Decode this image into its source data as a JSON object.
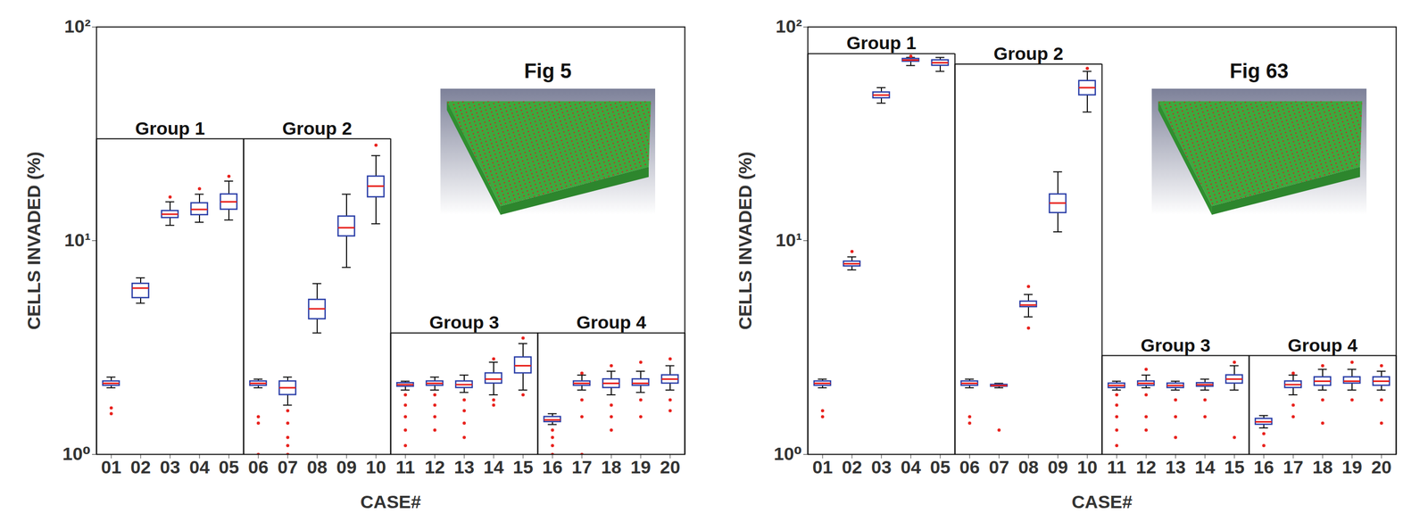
{
  "chart_data": [
    {
      "type": "box",
      "title": "Fig 5",
      "x_label": "CASE#",
      "y_label": "CELLS INVADED (%)",
      "log": "y",
      "color": "#2b3fa8",
      "categories": [
        "01",
        "02",
        "03",
        "04",
        "05",
        "06",
        "07",
        "08",
        "09",
        "10",
        "11",
        "12",
        "13",
        "14",
        "15",
        "16",
        "17",
        "18",
        "19",
        "20"
      ],
      "ylim": [
        1,
        100
      ],
      "yticks": [
        {
          "value": 1,
          "label": "10⁰"
        },
        {
          "value": 10,
          "label": "10¹"
        },
        {
          "value": 100,
          "label": "10²"
        }
      ],
      "boxes": [
        {
          "median": 2.15,
          "q1": 2.1,
          "q3": 2.2,
          "whisker_low": 2.05,
          "whisker_high": 2.3,
          "outliers": [
            1.55,
            1.65
          ]
        },
        {
          "median": 6.0,
          "q1": 5.4,
          "q3": 6.3,
          "whisker_low": 5.1,
          "whisker_high": 6.7,
          "outliers": []
        },
        {
          "median": 13.3,
          "q1": 12.8,
          "q3": 13.8,
          "whisker_low": 11.8,
          "whisker_high": 15.2,
          "outliers": [
            16.0
          ]
        },
        {
          "median": 14.0,
          "q1": 13.2,
          "q3": 15.0,
          "whisker_low": 12.2,
          "whisker_high": 16.5,
          "outliers": [
            17.5
          ]
        },
        {
          "median": 15.2,
          "q1": 14.0,
          "q3": 16.5,
          "whisker_low": 12.5,
          "whisker_high": 19.0,
          "outliers": [
            20.0
          ]
        },
        {
          "median": 2.15,
          "q1": 2.1,
          "q3": 2.2,
          "whisker_low": 2.05,
          "whisker_high": 2.25,
          "outliers": [
            1.5,
            1.4,
            1.0
          ]
        },
        {
          "median": 2.05,
          "q1": 1.9,
          "q3": 2.2,
          "whisker_low": 1.7,
          "whisker_high": 2.3,
          "outliers": [
            1.6,
            1.4,
            1.2,
            1.1,
            1.0
          ]
        },
        {
          "median": 4.8,
          "q1": 4.3,
          "q3": 5.3,
          "whisker_low": 3.7,
          "whisker_high": 6.3,
          "outliers": []
        },
        {
          "median": 11.5,
          "q1": 10.5,
          "q3": 13.0,
          "whisker_low": 7.5,
          "whisker_high": 16.5,
          "outliers": []
        },
        {
          "median": 18.0,
          "q1": 16.0,
          "q3": 20.0,
          "whisker_low": 12.0,
          "whisker_high": 25.0,
          "outliers": [
            28.0
          ]
        },
        {
          "median": 2.12,
          "q1": 2.08,
          "q3": 2.16,
          "whisker_low": 2.0,
          "whisker_high": 2.2,
          "outliers": [
            1.9,
            1.7,
            1.5,
            1.3,
            1.1
          ]
        },
        {
          "median": 2.15,
          "q1": 2.1,
          "q3": 2.2,
          "whisker_low": 2.0,
          "whisker_high": 2.3,
          "outliers": [
            1.9,
            1.7,
            1.5,
            1.3
          ]
        },
        {
          "median": 2.12,
          "q1": 2.05,
          "q3": 2.2,
          "whisker_low": 1.95,
          "whisker_high": 2.35,
          "outliers": [
            1.8,
            1.6,
            1.4,
            1.2
          ]
        },
        {
          "median": 2.25,
          "q1": 2.15,
          "q3": 2.4,
          "whisker_low": 1.9,
          "whisker_high": 2.7,
          "outliers": [
            2.8,
            1.8,
            1.7
          ]
        },
        {
          "median": 2.6,
          "q1": 2.4,
          "q3": 2.85,
          "whisker_low": 2.0,
          "whisker_high": 3.3,
          "outliers": [
            3.5,
            1.9
          ]
        },
        {
          "median": 1.45,
          "q1": 1.42,
          "q3": 1.5,
          "whisker_low": 1.38,
          "whisker_high": 1.55,
          "outliers": [
            1.3,
            1.2,
            1.1,
            1.0
          ]
        },
        {
          "median": 2.15,
          "q1": 2.1,
          "q3": 2.2,
          "whisker_low": 2.0,
          "whisker_high": 2.35,
          "outliers": [
            2.4,
            1.8,
            1.5,
            1.0
          ]
        },
        {
          "median": 2.15,
          "q1": 2.05,
          "q3": 2.25,
          "whisker_low": 1.9,
          "whisker_high": 2.45,
          "outliers": [
            2.6,
            1.7,
            1.5,
            1.3
          ]
        },
        {
          "median": 2.15,
          "q1": 2.1,
          "q3": 2.25,
          "whisker_low": 1.95,
          "whisker_high": 2.45,
          "outliers": [
            2.7,
            1.8,
            1.5
          ]
        },
        {
          "median": 2.25,
          "q1": 2.15,
          "q3": 2.35,
          "whisker_low": 2.0,
          "whisker_high": 2.6,
          "outliers": [
            2.8,
            1.8,
            1.6
          ]
        }
      ],
      "groups": [
        {
          "label": "Group 1",
          "first": "01",
          "last": "05",
          "level": 30
        },
        {
          "label": "Group 2",
          "first": "06",
          "last": "10",
          "level": 30
        },
        {
          "label": "Group 3",
          "first": "11",
          "last": "15",
          "level": 3.7
        },
        {
          "label": "Group 4",
          "first": "16",
          "last": "20",
          "level": 3.7
        }
      ]
    },
    {
      "type": "box",
      "title": "Fig 63",
      "x_label": "CASE#",
      "y_label": "CELLS INVADED (%)",
      "log": "y",
      "color": "#2b3fa8",
      "categories": [
        "01",
        "02",
        "03",
        "04",
        "05",
        "06",
        "07",
        "08",
        "09",
        "10",
        "11",
        "12",
        "13",
        "14",
        "15",
        "16",
        "17",
        "18",
        "19",
        "20"
      ],
      "ylim": [
        1,
        100
      ],
      "yticks": [
        {
          "value": 1,
          "label": "10⁰"
        },
        {
          "value": 10,
          "label": "10¹"
        },
        {
          "value": 100,
          "label": "10²"
        }
      ],
      "boxes": [
        {
          "median": 2.15,
          "q1": 2.1,
          "q3": 2.2,
          "whisker_low": 2.05,
          "whisker_high": 2.25,
          "outliers": [
            1.6,
            1.5
          ]
        },
        {
          "median": 7.8,
          "q1": 7.6,
          "q3": 8.0,
          "whisker_low": 7.3,
          "whisker_high": 8.4,
          "outliers": [
            8.9
          ]
        },
        {
          "median": 48,
          "q1": 46.5,
          "q3": 49.5,
          "whisker_low": 44,
          "whisker_high": 52,
          "outliers": []
        },
        {
          "median": 70,
          "q1": 69,
          "q3": 71,
          "whisker_low": 66,
          "whisker_high": 72,
          "outliers": [
            73
          ]
        },
        {
          "median": 68,
          "q1": 66,
          "q3": 70,
          "whisker_low": 62,
          "whisker_high": 72,
          "outliers": []
        },
        {
          "median": 2.15,
          "q1": 2.1,
          "q3": 2.2,
          "whisker_low": 2.05,
          "whisker_high": 2.25,
          "outliers": [
            1.5,
            1.4
          ]
        },
        {
          "median": 2.1,
          "q1": 2.08,
          "q3": 2.12,
          "whisker_low": 2.05,
          "whisker_high": 2.15,
          "outliers": [
            1.3
          ]
        },
        {
          "median": 5.0,
          "q1": 4.9,
          "q3": 5.2,
          "whisker_low": 4.4,
          "whisker_high": 5.6,
          "outliers": [
            6.1,
            3.9
          ]
        },
        {
          "median": 15,
          "q1": 13.5,
          "q3": 16.5,
          "whisker_low": 11,
          "whisker_high": 21,
          "outliers": []
        },
        {
          "median": 52,
          "q1": 48,
          "q3": 56,
          "whisker_low": 40,
          "whisker_high": 62,
          "outliers": [
            64
          ]
        },
        {
          "median": 2.1,
          "q1": 2.05,
          "q3": 2.15,
          "whisker_low": 2.0,
          "whisker_high": 2.2,
          "outliers": [
            1.9,
            1.7,
            1.5,
            1.3,
            1.1
          ]
        },
        {
          "median": 2.15,
          "q1": 2.1,
          "q3": 2.2,
          "whisker_low": 2.05,
          "whisker_high": 2.35,
          "outliers": [
            2.5,
            1.9,
            1.5,
            1.3
          ]
        },
        {
          "median": 2.1,
          "q1": 2.05,
          "q3": 2.15,
          "whisker_low": 2.0,
          "whisker_high": 2.2,
          "outliers": [
            1.8,
            1.5,
            1.2
          ]
        },
        {
          "median": 2.12,
          "q1": 2.08,
          "q3": 2.16,
          "whisker_low": 2.0,
          "whisker_high": 2.25,
          "outliers": [
            1.8,
            1.5
          ]
        },
        {
          "median": 2.25,
          "q1": 2.15,
          "q3": 2.35,
          "whisker_low": 2.0,
          "whisker_high": 2.6,
          "outliers": [
            2.7,
            1.2
          ]
        },
        {
          "median": 1.42,
          "q1": 1.38,
          "q3": 1.47,
          "whisker_low": 1.33,
          "whisker_high": 1.52,
          "outliers": [
            1.25,
            1.1
          ]
        },
        {
          "median": 2.12,
          "q1": 2.05,
          "q3": 2.2,
          "whisker_low": 1.9,
          "whisker_high": 2.35,
          "outliers": [
            2.4,
            1.7,
            1.5
          ]
        },
        {
          "median": 2.2,
          "q1": 2.1,
          "q3": 2.3,
          "whisker_low": 2.0,
          "whisker_high": 2.5,
          "outliers": [
            2.6,
            1.8,
            1.4
          ]
        },
        {
          "median": 2.2,
          "q1": 2.15,
          "q3": 2.3,
          "whisker_low": 2.0,
          "whisker_high": 2.5,
          "outliers": [
            2.7,
            1.8
          ]
        },
        {
          "median": 2.2,
          "q1": 2.1,
          "q3": 2.3,
          "whisker_low": 2.0,
          "whisker_high": 2.45,
          "outliers": [
            2.6,
            1.8,
            1.4
          ]
        }
      ],
      "groups": [
        {
          "label": "Group 1",
          "first": "01",
          "last": "05",
          "level": 75
        },
        {
          "label": "Group 2",
          "first": "06",
          "last": "10",
          "level": 67
        },
        {
          "label": "Group 3",
          "first": "11",
          "last": "15",
          "level": 2.9
        },
        {
          "label": "Group 4",
          "first": "16",
          "last": "20",
          "level": 2.9
        }
      ]
    }
  ]
}
